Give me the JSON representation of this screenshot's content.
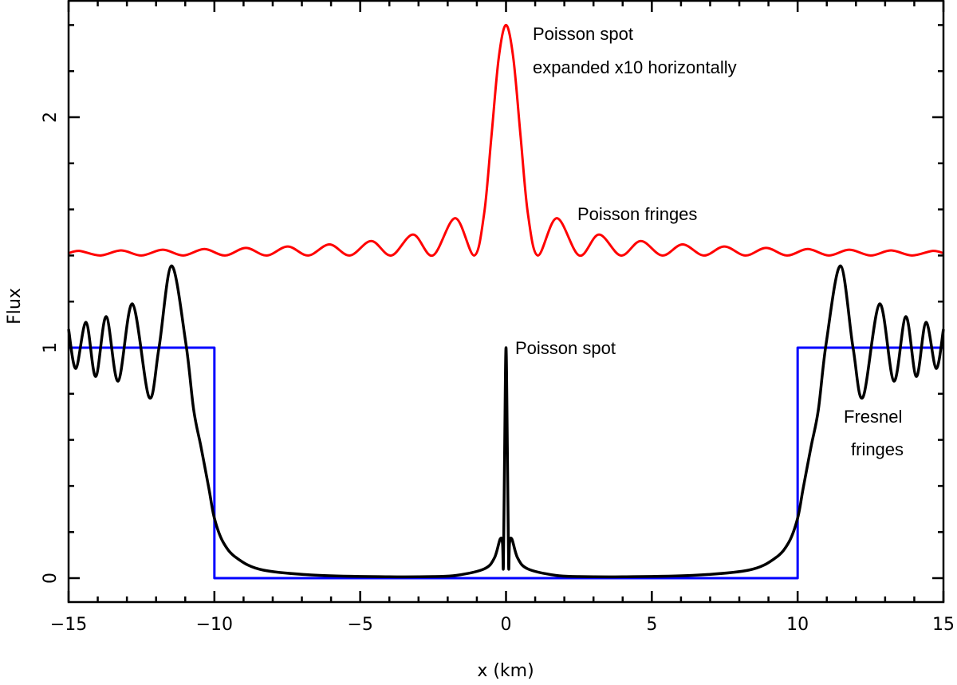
{
  "chart_data": {
    "type": "line",
    "title": "",
    "xlabel": "x (km)",
    "ylabel": "Flux",
    "xlim": [
      -15,
      15
    ],
    "ylim": [
      -0.104,
      2.51
    ],
    "x_ticks": [
      {
        "value": -15,
        "label": "−15"
      },
      {
        "value": -10,
        "label": "−10"
      },
      {
        "value": -5,
        "label": "−5"
      },
      {
        "value": 0,
        "label": "0"
      },
      {
        "value": 5,
        "label": "5"
      },
      {
        "value": 10,
        "label": "10"
      },
      {
        "value": 15,
        "label": "15"
      }
    ],
    "x_minor_step": 1,
    "y_ticks": [
      {
        "value": 0,
        "label": "0"
      },
      {
        "value": 1,
        "label": "1"
      },
      {
        "value": 2,
        "label": "2"
      }
    ],
    "y_minor_step": 0.2,
    "grid": false,
    "legend": "none",
    "series": [
      {
        "color": "#0000ff",
        "interpolation": "linear",
        "x": [
          -15,
          -10,
          -10,
          10,
          10,
          15
        ],
        "y": [
          1,
          1,
          0,
          0,
          1,
          1
        ]
      },
      {
        "color": "#000000",
        "interpolation": "smooth",
        "x": [
          -15,
          -14.75,
          -14.4,
          -14.07,
          -13.71,
          -13.3,
          -12.81,
          -12.24,
          -11.9,
          -11.47,
          -10.98,
          -10.71,
          -10.46,
          -10.19,
          -10.0,
          -9.7,
          -9.23,
          -8.33,
          -6.4,
          -4,
          -2.5,
          -1.7,
          -0.75,
          -0.4,
          -0.2,
          -0.12,
          -0.09,
          -0.05,
          0,
          0.05,
          0.09,
          0.12,
          0.2,
          0.4,
          0.75,
          1.7,
          2.5,
          4,
          6.4,
          8.33,
          9.23,
          9.7,
          10.0,
          10.19,
          10.46,
          10.71,
          10.98,
          11.47,
          11.9,
          12.24,
          12.81,
          13.3,
          13.71,
          14.07,
          14.4,
          14.75,
          15
        ],
        "y": [
          1.08,
          0.91,
          1.11,
          0.875,
          1.135,
          0.855,
          1.19,
          0.785,
          1.0,
          1.355,
          1.02,
          0.73,
          0.57,
          0.39,
          0.26,
          0.156,
          0.087,
          0.035,
          0.012,
          0.006,
          0.007,
          0.012,
          0.04,
          0.087,
          0.17,
          0.15,
          0.05,
          0.52,
          1.0,
          0.52,
          0.05,
          0.15,
          0.17,
          0.087,
          0.04,
          0.012,
          0.007,
          0.006,
          0.012,
          0.035,
          0.087,
          0.156,
          0.26,
          0.39,
          0.57,
          0.73,
          1.02,
          1.355,
          1.0,
          0.785,
          1.19,
          0.855,
          1.135,
          0.875,
          1.11,
          0.91,
          1.08
        ]
      },
      {
        "color": "#ff0000",
        "interpolation": "smooth",
        "x": [
          -15,
          -14.63,
          -13.92,
          -13.2,
          -12.5,
          -11.77,
          -11.07,
          -10.345,
          -9.636,
          -8.918,
          -8.209,
          -7.486,
          -6.782,
          -6.055,
          -5.355,
          -4.623,
          -3.934,
          -3.189,
          -2.509,
          -1.742,
          -1.093,
          -0.75,
          -0.5,
          -0.25,
          0,
          0.25,
          0.5,
          0.75,
          1.093,
          1.742,
          2.509,
          3.189,
          3.934,
          4.623,
          5.355,
          6.055,
          6.782,
          7.486,
          8.209,
          8.918,
          9.636,
          10.345,
          11.07,
          11.77,
          12.5,
          13.2,
          13.92,
          14.63,
          15
        ],
        "y": [
          1.41,
          1.42,
          1.4,
          1.422,
          1.4,
          1.425,
          1.4,
          1.428,
          1.4,
          1.433,
          1.4,
          1.439,
          1.4,
          1.448,
          1.4,
          1.463,
          1.4,
          1.491,
          1.4,
          1.562,
          1.4,
          1.582,
          1.917,
          2.257,
          2.4,
          2.257,
          1.917,
          1.582,
          1.4,
          1.562,
          1.4,
          1.491,
          1.4,
          1.463,
          1.4,
          1.448,
          1.4,
          1.439,
          1.4,
          1.433,
          1.4,
          1.428,
          1.4,
          1.425,
          1.4,
          1.422,
          1.4,
          1.42,
          1.41
        ]
      }
    ],
    "annotations": {
      "spot_expanded_line1": "Poisson spot",
      "spot_expanded_line2": "expanded x10 horizontally",
      "poisson_fringes": "Poisson fringes",
      "poisson_spot": "Poisson spot",
      "fresnel_line1": "Fresnel",
      "fresnel_line2": "fringes"
    }
  }
}
